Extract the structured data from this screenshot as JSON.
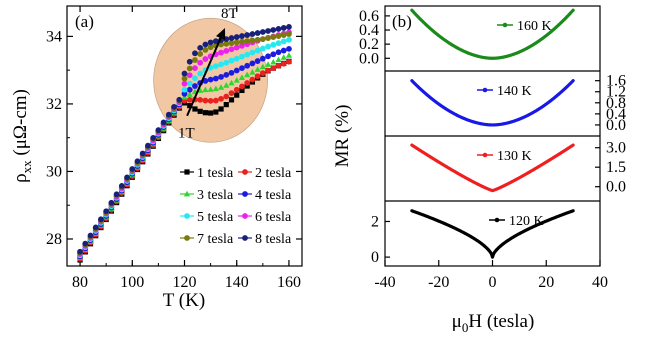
{
  "chart_data": [
    {
      "panel": "(a)",
      "type": "scatter",
      "xlabel": "T (K)",
      "ylabel": "ρxx (μΩ-cm)",
      "ylabel_main": "ρ",
      "ylabel_sub": "xx",
      "ylabel_rest": " (μΩ-cm)",
      "xlim": [
        75,
        165
      ],
      "ylim": [
        27.2,
        34.9
      ],
      "xticks": [
        80,
        100,
        120,
        140,
        160
      ],
      "yticks": [
        28,
        30,
        32,
        34
      ],
      "grid": false,
      "legend_position": "bottom-right",
      "annotations": {
        "high_field": "8T",
        "low_field": "1T"
      },
      "highlight_circle": {
        "center": [
          130,
          32.7
        ],
        "color": "#f2c8a4"
      },
      "x": [
        80,
        82,
        84,
        86,
        88,
        90,
        92,
        94,
        96,
        98,
        100,
        102,
        104,
        106,
        108,
        110,
        112,
        114,
        116,
        118,
        120,
        122,
        124,
        126,
        128,
        130,
        132,
        134,
        136,
        138,
        140,
        142,
        144,
        146,
        148,
        150,
        152,
        154,
        156,
        158,
        160
      ],
      "low_T_curve": [
        27.5,
        27.74,
        27.98,
        28.22,
        28.46,
        28.7,
        28.95,
        29.2,
        29.45,
        29.7,
        29.95,
        30.18,
        30.41,
        30.64,
        30.87,
        31.1,
        31.33,
        31.56,
        31.79,
        32.0
      ],
      "series": [
        {
          "name": "1 tesla",
          "color": "#000000",
          "marker": "square",
          "values_T_ge_118": [
            32.0,
            32.03,
            31.95,
            31.85,
            31.78,
            31.74,
            31.73,
            31.76,
            31.85,
            31.98,
            32.12,
            32.26,
            32.4,
            32.53,
            32.65,
            32.77,
            32.88,
            32.98,
            33.06,
            33.13,
            33.2,
            33.26
          ]
        },
        {
          "name": "2 tesla",
          "color": "#e8231f",
          "marker": "circle",
          "values_T_ge_118": [
            32.05,
            32.1,
            32.12,
            32.13,
            32.12,
            32.1,
            32.09,
            32.1,
            32.15,
            32.22,
            32.32,
            32.42,
            32.52,
            32.62,
            32.72,
            32.82,
            32.91,
            32.99,
            33.06,
            33.13,
            33.19,
            33.25
          ]
        },
        {
          "name": "3 tesla",
          "color": "#2fd62f",
          "marker": "triangle",
          "values_T_ge_118": [
            32.1,
            32.2,
            32.28,
            32.36,
            32.4,
            32.42,
            32.43,
            32.45,
            32.49,
            32.55,
            32.62,
            32.7,
            32.78,
            32.86,
            32.94,
            33.02,
            33.1,
            33.17,
            33.24,
            33.31,
            33.38,
            33.44
          ]
        },
        {
          "name": "4 tesla",
          "color": "#1c1ce0",
          "marker": "circle",
          "values_T_ge_118": [
            32.15,
            32.3,
            32.42,
            32.53,
            32.62,
            32.68,
            32.72,
            32.75,
            32.8,
            32.86,
            32.92,
            32.99,
            33.06,
            33.13,
            33.2,
            33.27,
            33.34,
            33.41,
            33.47,
            33.53,
            33.58,
            33.63
          ]
        },
        {
          "name": "5 tesla",
          "color": "#27e8f0",
          "marker": "circle",
          "values_T_ge_118": [
            32.2,
            32.42,
            32.6,
            32.76,
            32.9,
            33.0,
            33.07,
            33.12,
            33.17,
            33.22,
            33.28,
            33.34,
            33.4,
            33.46,
            33.52,
            33.58,
            33.64,
            33.7,
            33.75,
            33.8,
            33.85,
            33.9
          ]
        },
        {
          "name": "6 tesla",
          "color": "#ee21ee",
          "marker": "circle",
          "values_T_ge_118": [
            32.3,
            32.6,
            32.85,
            33.06,
            33.22,
            33.33,
            33.41,
            33.47,
            33.52,
            33.57,
            33.62,
            33.67,
            33.72,
            33.77,
            33.82,
            33.87,
            33.92,
            33.96,
            34.0,
            34.04,
            34.08,
            34.12
          ]
        },
        {
          "name": "7 tesla",
          "color": "#7b7a0e",
          "marker": "circle",
          "values_T_ge_118": [
            32.4,
            32.75,
            33.05,
            33.3,
            33.48,
            33.6,
            33.68,
            33.73,
            33.76,
            33.78,
            33.8,
            33.82,
            33.84,
            33.86,
            33.88,
            33.9,
            33.92,
            33.95,
            33.98,
            34.01,
            34.04,
            34.07
          ]
        },
        {
          "name": "8 tesla",
          "color": "#17217a",
          "marker": "circle",
          "values_T_ge_118": [
            32.5,
            32.9,
            33.25,
            33.5,
            33.66,
            33.76,
            33.82,
            33.86,
            33.89,
            33.92,
            33.95,
            33.98,
            34.01,
            34.04,
            34.07,
            34.1,
            34.13,
            34.16,
            34.19,
            34.22,
            34.25,
            34.28
          ]
        }
      ]
    },
    {
      "panel": "(b)",
      "type": "line",
      "xlabel": "μ0H (tesla)",
      "xlabel_main": "μ",
      "xlabel_sub": "0",
      "xlabel_rest": "H (tesla)",
      "ylabel": "MR (%)",
      "xlim": [
        -40,
        40
      ],
      "xticks": [
        -40,
        -20,
        0,
        20,
        40
      ],
      "field_range": [
        -30,
        30
      ],
      "grid": false,
      "subplots": [
        {
          "name": "160 K",
          "color": "#1a8a1a",
          "axis_side": "left",
          "ylim": [
            -0.18,
            0.74
          ],
          "yticks": [
            0.0,
            0.2,
            0.4,
            0.6
          ],
          "ytick_labels": [
            "0.0",
            "0.2",
            "0.4",
            "0.6"
          ],
          "shape": "parabolic",
          "min": 0.0,
          "max_at_30T": 0.68
        },
        {
          "name": "140 K",
          "color": "#1919e6",
          "axis_side": "right",
          "ylim": [
            -0.4,
            1.95
          ],
          "yticks": [
            0.0,
            0.4,
            0.8,
            1.2,
            1.6
          ],
          "ytick_labels": [
            "0.0",
            "0.4",
            "0.8",
            "1.2",
            "1.6"
          ],
          "shape": "parabolic",
          "min": 0.0,
          "max_at_30T": 1.6
        },
        {
          "name": "130 K",
          "color": "#f01f1f",
          "axis_side": "right",
          "ylim": [
            -1.1,
            3.9
          ],
          "yticks": [
            0.0,
            1.5,
            3.0
          ],
          "ytick_labels": [
            "0.0",
            "1.5",
            "3.0"
          ],
          "shape": "cusp",
          "min": -0.3,
          "max_at_30T": 3.2
        },
        {
          "name": "120 K",
          "color": "#000000",
          "axis_side": "left",
          "ylim": [
            -0.5,
            3.15
          ],
          "yticks": [
            0,
            2
          ],
          "ytick_labels": [
            "0",
            "2"
          ],
          "shape": "sharp-cusp",
          "min": 0.0,
          "max_at_30T": 2.6
        }
      ]
    }
  ]
}
